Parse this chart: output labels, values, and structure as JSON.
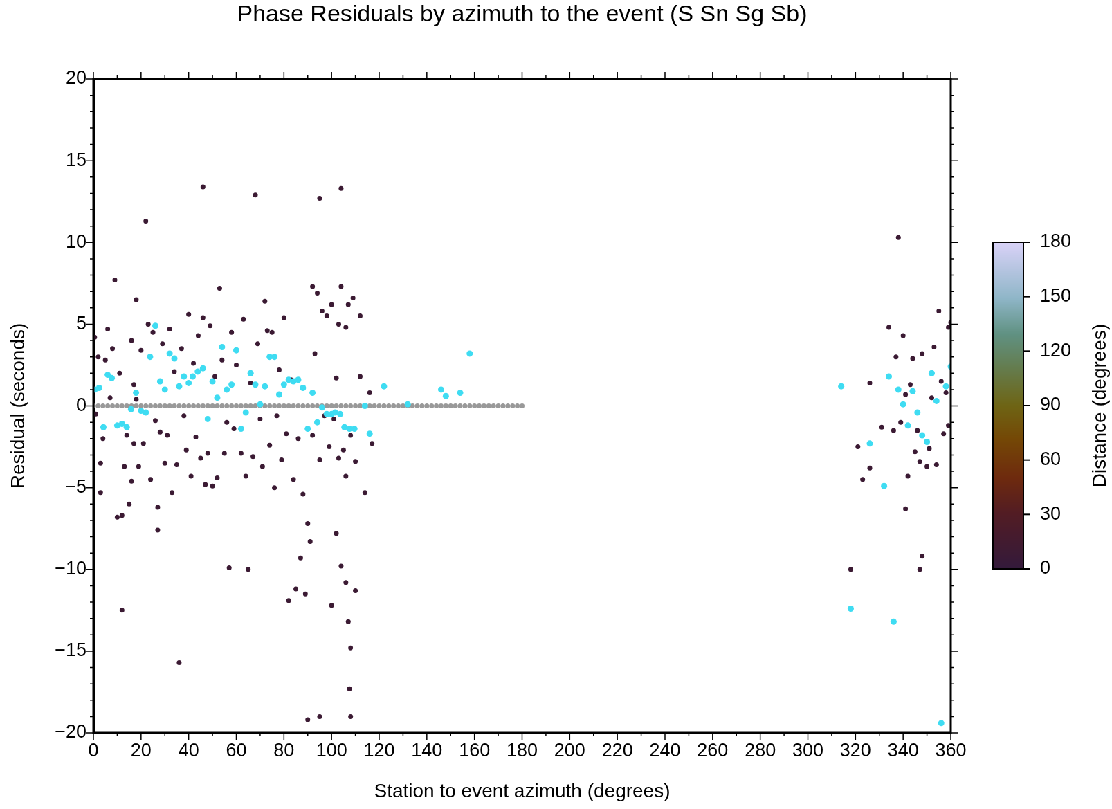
{
  "chart_data": {
    "type": "scatter",
    "title": "Phase Residuals by azimuth to the event (S Sn Sg Sb)",
    "xlabel": "Station to event azimuth (degrees)",
    "ylabel": "Residual (seconds)",
    "clabel": "Distance (degrees)",
    "clim": [
      0,
      180
    ],
    "cticks": [
      0,
      30,
      60,
      90,
      120,
      150,
      180
    ],
    "xlim": [
      0,
      360
    ],
    "ylim": [
      -20,
      20
    ],
    "xticks": [
      0,
      {
        "value": 10,
        "label": null
      },
      20,
      {
        "value": 30,
        "label": null
      },
      40,
      {
        "value": 50,
        "label": null
      },
      60,
      {
        "value": 70,
        "label": null
      },
      80,
      {
        "value": 90,
        "label": null
      },
      100,
      {
        "value": 110,
        "label": null
      },
      120,
      {
        "value": 130,
        "label": null
      },
      140,
      {
        "value": 150,
        "label": null
      },
      160,
      {
        "value": 170,
        "label": null
      },
      180,
      {
        "value": 190,
        "label": null
      },
      200,
      {
        "value": 210,
        "label": null
      },
      220,
      {
        "value": 230,
        "label": null
      },
      240,
      {
        "value": 250,
        "label": null
      },
      260,
      {
        "value": 270,
        "label": null
      },
      280,
      {
        "value": 290,
        "label": null
      },
      300,
      {
        "value": 310,
        "label": null
      },
      320,
      {
        "value": 330,
        "label": null
      },
      340,
      {
        "value": 350,
        "label": null
      },
      360
    ],
    "yticks": [
      -20,
      {
        "value": -19,
        "label": null
      },
      {
        "value": -18,
        "label": null
      },
      {
        "value": -17,
        "label": null
      },
      {
        "value": -16,
        "label": null
      },
      -15,
      {
        "value": -14,
        "label": null
      },
      {
        "value": -13,
        "label": null
      },
      {
        "value": -12,
        "label": null
      },
      {
        "value": -11,
        "label": null
      },
      -10,
      {
        "value": -9,
        "label": null
      },
      {
        "value": -8,
        "label": null
      },
      {
        "value": -7,
        "label": null
      },
      {
        "value": -6,
        "label": null
      },
      -5,
      {
        "value": -4,
        "label": null
      },
      {
        "value": -3,
        "label": null
      },
      {
        "value": -2,
        "label": null
      },
      {
        "value": -1,
        "label": null
      },
      0,
      {
        "value": 1,
        "label": null
      },
      {
        "value": 2,
        "label": null
      },
      {
        "value": 3,
        "label": null
      },
      {
        "value": 4,
        "label": null
      },
      5,
      {
        "value": 6,
        "label": null
      },
      {
        "value": 7,
        "label": null
      },
      {
        "value": 8,
        "label": null
      },
      {
        "value": 9,
        "label": null
      },
      10,
      {
        "value": 11,
        "label": null
      },
      {
        "value": 12,
        "label": null
      },
      {
        "value": 13,
        "label": null
      },
      {
        "value": 14,
        "label": null
      },
      15,
      {
        "value": 16,
        "label": null
      },
      {
        "value": 17,
        "label": null
      },
      {
        "value": 18,
        "label": null
      },
      {
        "value": 19,
        "label": null
      },
      20
    ],
    "grid": false,
    "legend": false,
    "marker": "circle",
    "series": [
      {
        "type": "line",
        "color": "#999999",
        "x": [
          0,
          2,
          4,
          6,
          8,
          10,
          12,
          14,
          16,
          18,
          20,
          22,
          24,
          26,
          28,
          30,
          32,
          34,
          36,
          38,
          40,
          42,
          44,
          46,
          48,
          50,
          52,
          54,
          56,
          58,
          60,
          62,
          64,
          66,
          68,
          70,
          72,
          74,
          76,
          78,
          80,
          82,
          84,
          86,
          88,
          90,
          92,
          94,
          96,
          98,
          100,
          102,
          104,
          106,
          108,
          110,
          112,
          114,
          116,
          118,
          120,
          122,
          124,
          126,
          128,
          130,
          132,
          134,
          136,
          138,
          140,
          142,
          144,
          146,
          148,
          150,
          152,
          154,
          156,
          158,
          160,
          162,
          164,
          166,
          168,
          170,
          172,
          174,
          176,
          178,
          180
        ],
        "values": [
          0,
          0,
          0,
          0,
          0,
          0,
          0,
          0,
          0,
          0,
          0,
          0,
          0,
          0,
          0,
          0,
          0,
          0,
          0,
          0,
          0,
          0,
          0,
          0,
          0,
          0,
          0,
          0,
          0,
          0,
          0,
          0,
          0,
          0,
          0,
          0,
          0,
          0,
          0,
          0,
          0,
          0,
          0,
          0,
          0,
          0,
          0,
          0,
          0,
          0,
          0,
          0,
          0,
          0,
          0,
          0,
          0,
          0,
          0,
          0,
          0,
          0,
          0,
          0,
          0,
          0,
          0,
          0,
          0,
          0,
          0,
          0,
          0,
          0,
          0,
          0,
          0,
          0,
          0,
          0,
          0,
          0,
          0,
          0,
          0,
          0,
          0,
          0,
          0,
          0,
          0
        ]
      },
      {
        "color": "#3b1a33",
        "x": [
          0.5,
          1,
          2,
          3,
          3,
          4,
          5,
          6,
          7,
          8,
          9,
          10,
          11,
          12,
          12,
          13,
          14,
          15,
          16,
          16,
          17,
          17,
          18,
          18,
          19,
          20,
          21,
          22,
          23,
          24,
          25,
          26,
          27,
          27,
          28,
          29,
          30,
          31,
          32,
          33,
          34,
          35,
          36,
          37,
          38,
          39,
          40,
          41,
          42,
          43,
          44,
          45,
          46,
          46,
          47,
          48,
          49,
          50,
          51,
          52,
          53,
          54,
          55,
          56,
          57,
          58,
          59,
          60,
          62,
          63,
          64,
          65,
          66,
          67,
          68,
          69,
          70,
          71,
          72,
          73,
          74,
          75,
          76,
          77,
          78,
          79,
          80,
          81,
          82,
          83,
          84,
          85,
          86,
          87,
          88,
          89,
          90,
          91,
          92,
          92,
          93,
          94,
          95,
          95,
          95,
          96,
          97,
          98,
          99,
          100,
          100,
          101,
          102,
          102,
          103,
          103,
          104,
          104,
          104,
          105,
          106,
          106,
          106,
          107,
          107,
          108,
          108,
          107.5,
          108,
          109,
          110,
          110,
          112,
          112,
          114,
          116,
          117,
          90,
          318,
          321,
          323,
          326,
          326,
          331,
          334,
          336,
          337,
          338,
          339,
          340,
          341,
          341,
          342,
          343,
          344,
          345,
          346,
          347,
          347,
          348,
          348,
          350,
          351,
          352,
          353,
          354,
          355,
          356,
          357,
          358,
          359,
          359,
          360
        ],
        "values": [
          4.2,
          -0.5,
          3,
          -3.5,
          -5.3,
          -2,
          2.8,
          4.7,
          0.5,
          3.5,
          7.7,
          -6.8,
          2,
          -12.5,
          -6.7,
          -3.7,
          -1.8,
          -6,
          -4.6,
          4,
          1.3,
          -2.3,
          0.4,
          6.5,
          -3.7,
          3.4,
          -2.3,
          11.3,
          5,
          -4.5,
          4.5,
          -0.9,
          -7.6,
          -6.2,
          -1.6,
          3.8,
          -3.5,
          -1.8,
          4.7,
          -5.3,
          2.1,
          -3.6,
          -15.7,
          3.5,
          -0.6,
          -2.7,
          5.6,
          -4.3,
          2.6,
          -1.9,
          4.3,
          -3.2,
          13.4,
          5.4,
          -4.8,
          -2.9,
          4.9,
          -4.9,
          1.8,
          -4.4,
          7.2,
          2.8,
          -2.9,
          -1,
          -9.9,
          4.5,
          -1.4,
          2.5,
          -2.9,
          5.3,
          -4.3,
          -10,
          1.4,
          -3.1,
          12.9,
          3.8,
          -0.8,
          -3.7,
          6.4,
          4.6,
          -2.4,
          4.5,
          -5,
          -0.6,
          2.2,
          -3.3,
          5.4,
          -1.7,
          -11.9,
          1.6,
          -4.5,
          -11.2,
          -2,
          -9.3,
          -5.4,
          -11.5,
          -7.2,
          -8.3,
          7.3,
          -1.8,
          3.2,
          6.9,
          12.7,
          -19,
          -3.3,
          5.8,
          -0.6,
          5.5,
          -2.5,
          6.2,
          -12.2,
          -0.8,
          1.7,
          -7.8,
          5,
          -3.2,
          7.3,
          13.3,
          -9.8,
          -2.7,
          4.8,
          -4.3,
          -10.8,
          6.2,
          -13.2,
          -1.8,
          -14.8,
          -17.3,
          -19,
          6.6,
          -3.4,
          -11.3,
          5.5,
          1.8,
          -5.3,
          0.8,
          -2.3,
          -19.2,
          -10,
          -2.5,
          -4.5,
          1.4,
          -3.8,
          -1.3,
          4.8,
          -1.5,
          3,
          10.3,
          -1,
          4.3,
          0.7,
          -6.3,
          -4.3,
          1.3,
          2.9,
          -2.8,
          -1.5,
          -3.4,
          -10,
          -9.2,
          3.2,
          -3.7,
          -2.6,
          0.5,
          3.6,
          -3.6,
          5.8,
          1.5,
          -1.7,
          0.8,
          -1.2,
          4.8,
          5.1
        ]
      },
      {
        "color": "#3fdcf2",
        "x": [
          0.6,
          2.4,
          4.2,
          6,
          7.7,
          10,
          12,
          14,
          15.8,
          17.9,
          20,
          22,
          23.8,
          26,
          28,
          30,
          32,
          34,
          36,
          38,
          40,
          41.7,
          43.8,
          46,
          48,
          50,
          52,
          54,
          56,
          58,
          60,
          62,
          64,
          66,
          68,
          70,
          72,
          74,
          76,
          78,
          80,
          82,
          84,
          86,
          88,
          90,
          92,
          94,
          96,
          98,
          100,
          101.5,
          103.6,
          105.4,
          107.5,
          109.6,
          114,
          116,
          122,
          132,
          146,
          148,
          154,
          158,
          314,
          318,
          326,
          332,
          334,
          336,
          338,
          340,
          342,
          344,
          346,
          348,
          350,
          352,
          354,
          356,
          358,
          360
        ],
        "values": [
          1,
          1.1,
          -1.3,
          1.9,
          1.7,
          -1.2,
          -1.1,
          -1.3,
          -0.2,
          0.8,
          -0.3,
          -0.4,
          3,
          4.9,
          1.5,
          1,
          3.2,
          2.9,
          1.2,
          1.8,
          1.4,
          1.8,
          2.1,
          2.3,
          -0.8,
          1.5,
          0.5,
          3.6,
          1,
          1.3,
          3.4,
          -1.4,
          -0.4,
          2,
          1.3,
          0.1,
          1.2,
          3,
          3,
          0.7,
          1.3,
          1.6,
          1.5,
          1.6,
          1.1,
          -1.4,
          0.8,
          -1,
          -0.1,
          -0.5,
          -0.5,
          -0.4,
          -0.5,
          -1.3,
          -1.4,
          -1.4,
          0,
          -1.7,
          1.2,
          0.1,
          1,
          0.6,
          0.8,
          3.2,
          1.2,
          -12.4,
          -2.3,
          -4.9,
          1.8,
          -13.2,
          1,
          0.1,
          -1.2,
          0.9,
          -0.4,
          -1.8,
          -2.2,
          2,
          0.3,
          -19.4,
          1.2,
          2.4
        ]
      }
    ]
  }
}
